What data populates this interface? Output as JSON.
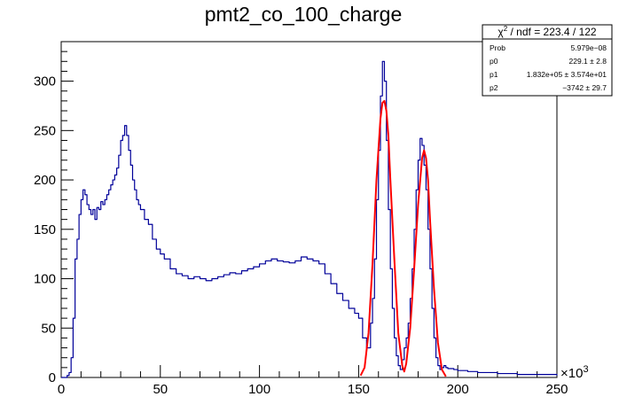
{
  "chart_data": {
    "type": "line",
    "title": "pmt2_co_100_charge",
    "x_multiplier_label": "×10",
    "x_multiplier_exp": "3",
    "xlim": [
      0,
      250
    ],
    "ylim": [
      0,
      340
    ],
    "x_ticks": [
      0,
      50,
      100,
      150,
      200,
      250
    ],
    "y_ticks": [
      0,
      50,
      100,
      150,
      200,
      250,
      300
    ],
    "grid": false,
    "series": [
      {
        "role": "histogram",
        "color": "#000099",
        "x": [
          0,
          2,
          3,
          4,
          5,
          6,
          7,
          8,
          9,
          10,
          11,
          12,
          13,
          14,
          15,
          16,
          17,
          18,
          19,
          20,
          21,
          22,
          23,
          24,
          25,
          26,
          27,
          28,
          29,
          30,
          31,
          32,
          33,
          34,
          35,
          36,
          37,
          38,
          39,
          40,
          42,
          44,
          46,
          48,
          50,
          52,
          55,
          58,
          61,
          64,
          67,
          70,
          73,
          76,
          79,
          82,
          85,
          88,
          91,
          94,
          97,
          100,
          103,
          106,
          109,
          112,
          115,
          118,
          121,
          124,
          127,
          130,
          133,
          136,
          139,
          142,
          145,
          148,
          150,
          152,
          154,
          156,
          157,
          158,
          159,
          160,
          161,
          162,
          163,
          164,
          165,
          166,
          167,
          168,
          169,
          170,
          171,
          172,
          173,
          174,
          175,
          176,
          177,
          178,
          179,
          180,
          181,
          182,
          183,
          184,
          185,
          186,
          187,
          188,
          189,
          190,
          191,
          192,
          193,
          194,
          195,
          196,
          198,
          200,
          205,
          210,
          215,
          220,
          225,
          230,
          235,
          240,
          245,
          250
        ],
        "y": [
          0,
          0,
          2,
          5,
          20,
          60,
          120,
          140,
          165,
          180,
          190,
          185,
          175,
          170,
          165,
          170,
          160,
          172,
          170,
          178,
          175,
          180,
          185,
          190,
          195,
          200,
          205,
          212,
          225,
          240,
          245,
          255,
          245,
          230,
          215,
          200,
          190,
          180,
          175,
          170,
          160,
          155,
          140,
          130,
          125,
          120,
          110,
          105,
          103,
          100,
          102,
          100,
          98,
          100,
          102,
          104,
          106,
          105,
          108,
          110,
          112,
          115,
          118,
          120,
          118,
          117,
          116,
          118,
          122,
          120,
          118,
          115,
          105,
          95,
          85,
          78,
          70,
          65,
          60,
          40,
          30,
          55,
          80,
          120,
          180,
          230,
          285,
          320,
          300,
          240,
          170,
          110,
          70,
          40,
          22,
          12,
          8,
          18,
          30,
          40,
          55,
          80,
          110,
          150,
          190,
          220,
          242,
          235,
          215,
          190,
          150,
          110,
          70,
          40,
          20,
          12,
          8,
          10,
          12,
          10,
          9,
          9,
          8,
          7,
          6,
          5,
          5,
          4,
          4,
          3,
          3,
          3,
          3,
          2
        ]
      },
      {
        "role": "fit",
        "color": "#ff0000",
        "x": [
          151,
          153,
          155,
          157,
          159,
          161,
          162,
          163,
          164,
          165,
          166,
          168,
          170,
          172,
          173,
          174,
          176,
          178,
          180,
          182,
          183,
          184,
          185,
          186,
          188,
          190,
          192,
          194
        ],
        "y": [
          2,
          10,
          45,
          115,
          200,
          262,
          278,
          280,
          270,
          245,
          200,
          120,
          45,
          12,
          6,
          14,
          50,
          110,
          175,
          222,
          230,
          222,
          200,
          160,
          90,
          35,
          8,
          1
        ]
      }
    ],
    "stats_box": {
      "header_sym": "χ",
      "header_exp": "2",
      "header_rest": " / ndf = 223.4 / 122",
      "rows": [
        {
          "label": "Prob",
          "value": "5.979e−08"
        },
        {
          "label": "p0",
          "value": "229.1 ± 2.8"
        },
        {
          "label": "p1",
          "value": "1.832e+05 ± 3.574e+01"
        },
        {
          "label": "p2",
          "value": "−3742 ± 29.7"
        }
      ]
    }
  }
}
